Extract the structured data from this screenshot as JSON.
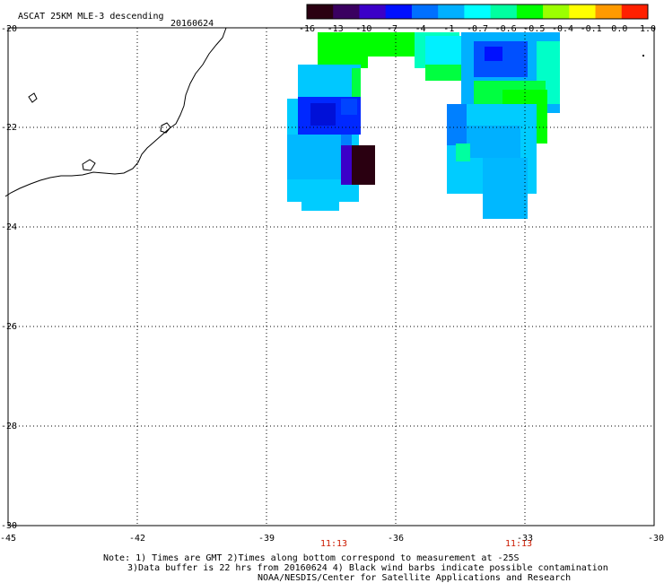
{
  "header": {
    "title": "ASCAT 25KM MLE-3 descending",
    "date": "20160624"
  },
  "colorbar": {
    "labels": [
      "-16",
      "-13",
      "-10",
      "-7",
      "-4",
      "-1",
      "-0.7",
      "-0.6",
      "-0.5",
      "-0.4",
      "-0.1",
      "0.0",
      "1.0"
    ],
    "colors": [
      "#2a0011",
      "#3a0060",
      "#3b00c8",
      "#0010ff",
      "#0070ff",
      "#00b0ff",
      "#00ffff",
      "#00ffa0",
      "#00ff00",
      "#9cff00",
      "#ffff00",
      "#ff9a00",
      "#ff2000"
    ]
  },
  "map": {
    "lon_ticks": [
      "-45",
      "-42",
      "-39",
      "-36",
      "-33",
      "-30"
    ],
    "lat_ticks": [
      "-20",
      "-22",
      "-24",
      "-26",
      "-28",
      "-30"
    ],
    "time_labels": [
      "11:13",
      "11:13"
    ],
    "accent_color": "#cc1a00",
    "gridlines": "dotted",
    "coastline": "South America (Brazil, Rio de Janeiro/Espírito Santo)",
    "swath_cells": [
      {
        "lon": -38.1,
        "lat": -20.5,
        "value": -0.6
      },
      {
        "lon": -37.0,
        "lat": -20.5,
        "value": -0.6
      },
      {
        "lon": -36.0,
        "lat": -20.5,
        "value": -0.6
      },
      {
        "lon": -38.3,
        "lat": -21.5,
        "value": -7
      },
      {
        "lon": -37.6,
        "lat": -21.7,
        "value": -10
      },
      {
        "lon": -37.0,
        "lat": -23.0,
        "value": -16
      },
      {
        "lon": -38.3,
        "lat": -23.0,
        "value": -1
      },
      {
        "lon": -34.6,
        "lat": -20.6,
        "value": -0.7
      },
      {
        "lon": -33.8,
        "lat": -20.8,
        "value": -7
      },
      {
        "lon": -33.3,
        "lat": -21.8,
        "value": -0.6
      },
      {
        "lon": -33.5,
        "lat": -23.0,
        "value": -1
      }
    ]
  },
  "footer": {
    "line1": "Note: 1) Times are GMT 2)Times along bottom correspond to measurement at -25S",
    "line2": "3)Data buffer is 22 hrs from 20160624 4) Black wind barbs indicate possible contamination",
    "line3": "NOAA/NESDIS/Center for Satellite Applications and Research"
  }
}
